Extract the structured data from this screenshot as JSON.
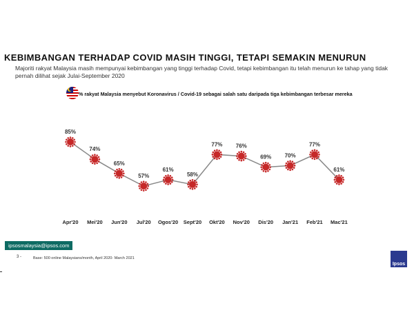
{
  "header": {
    "title": "KEBIMBANGAN TERHADAP COVID MASIH TINGGI, TETAPI SEMAKIN MENURUN",
    "subtitle": "Majoriti rakyat Malaysia masih mempunyai kebimbangan yang tinggi terhadap Covid, tetapi kebimbangan itu telah menurun ke tahap yang tidak pernah dilihat sejak Julai-September 2020",
    "question": "% rakyat Malaysia menyebut Koronavirus / Covid-19 sebagai salah satu daripada tiga kebimbangan terbesar mereka"
  },
  "chart_data": {
    "type": "line",
    "title": "% rakyat Malaysia menyebut Koronavirus / Covid-19 sebagai salah satu daripada tiga kebimbangan terbesar mereka",
    "categories": [
      "Apr'20",
      "Mei'20",
      "Jun'20",
      "Jul'20",
      "Ogos'20",
      "Sept'20",
      "Okt'20",
      "Nov'20",
      "Dis'20",
      "Jan'21",
      "Feb'21",
      "Mac'21"
    ],
    "values": [
      85,
      74,
      65,
      57,
      61,
      58,
      77,
      76,
      69,
      70,
      77,
      61
    ],
    "unit": "%",
    "xlabel": "",
    "ylabel": "",
    "line_color": "#888888",
    "marker_color": "#c62828"
  },
  "footer": {
    "email": "ipsosmalaysia@ipsos.com",
    "page": "3 -",
    "base": "Base: 500 online Malaysians/month, April 2020- March 2021",
    "logo": "Ipsos"
  }
}
